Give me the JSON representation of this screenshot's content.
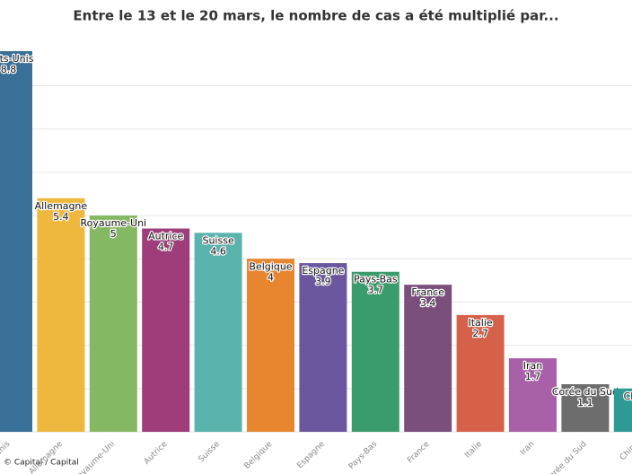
{
  "chart_data": {
    "type": "bar",
    "title": "Entre le 13 et le 20 mars, le nombre de cas a été multiplié par...",
    "categories": [
      "Etats-Unis",
      "Allemagne",
      "Royaume-Uni",
      "Autrice",
      "Suisse",
      "Belgique",
      "Espagne",
      "Pays-Bas",
      "France",
      "Italie",
      "Iran",
      "Corée du Sud",
      "Chine"
    ],
    "values": [
      8.8,
      5.4,
      5,
      4.7,
      4.6,
      4,
      3.9,
      3.7,
      3.4,
      2.7,
      1.7,
      1.1,
      1
    ],
    "colors": [
      "#3a6f98",
      "#eeb83e",
      "#85b862",
      "#9e3d7a",
      "#5ab3ad",
      "#e8862f",
      "#6b579e",
      "#3a9c6c",
      "#7a4f7c",
      "#d6614a",
      "#a860a8",
      "#6d6d6d",
      "#2e9a96"
    ],
    "ylim": [
      0,
      8.8
    ],
    "yticks": [
      0,
      1,
      2,
      3,
      4,
      5,
      6,
      7,
      8
    ],
    "grid": true,
    "source": "© Capital / Capital"
  }
}
